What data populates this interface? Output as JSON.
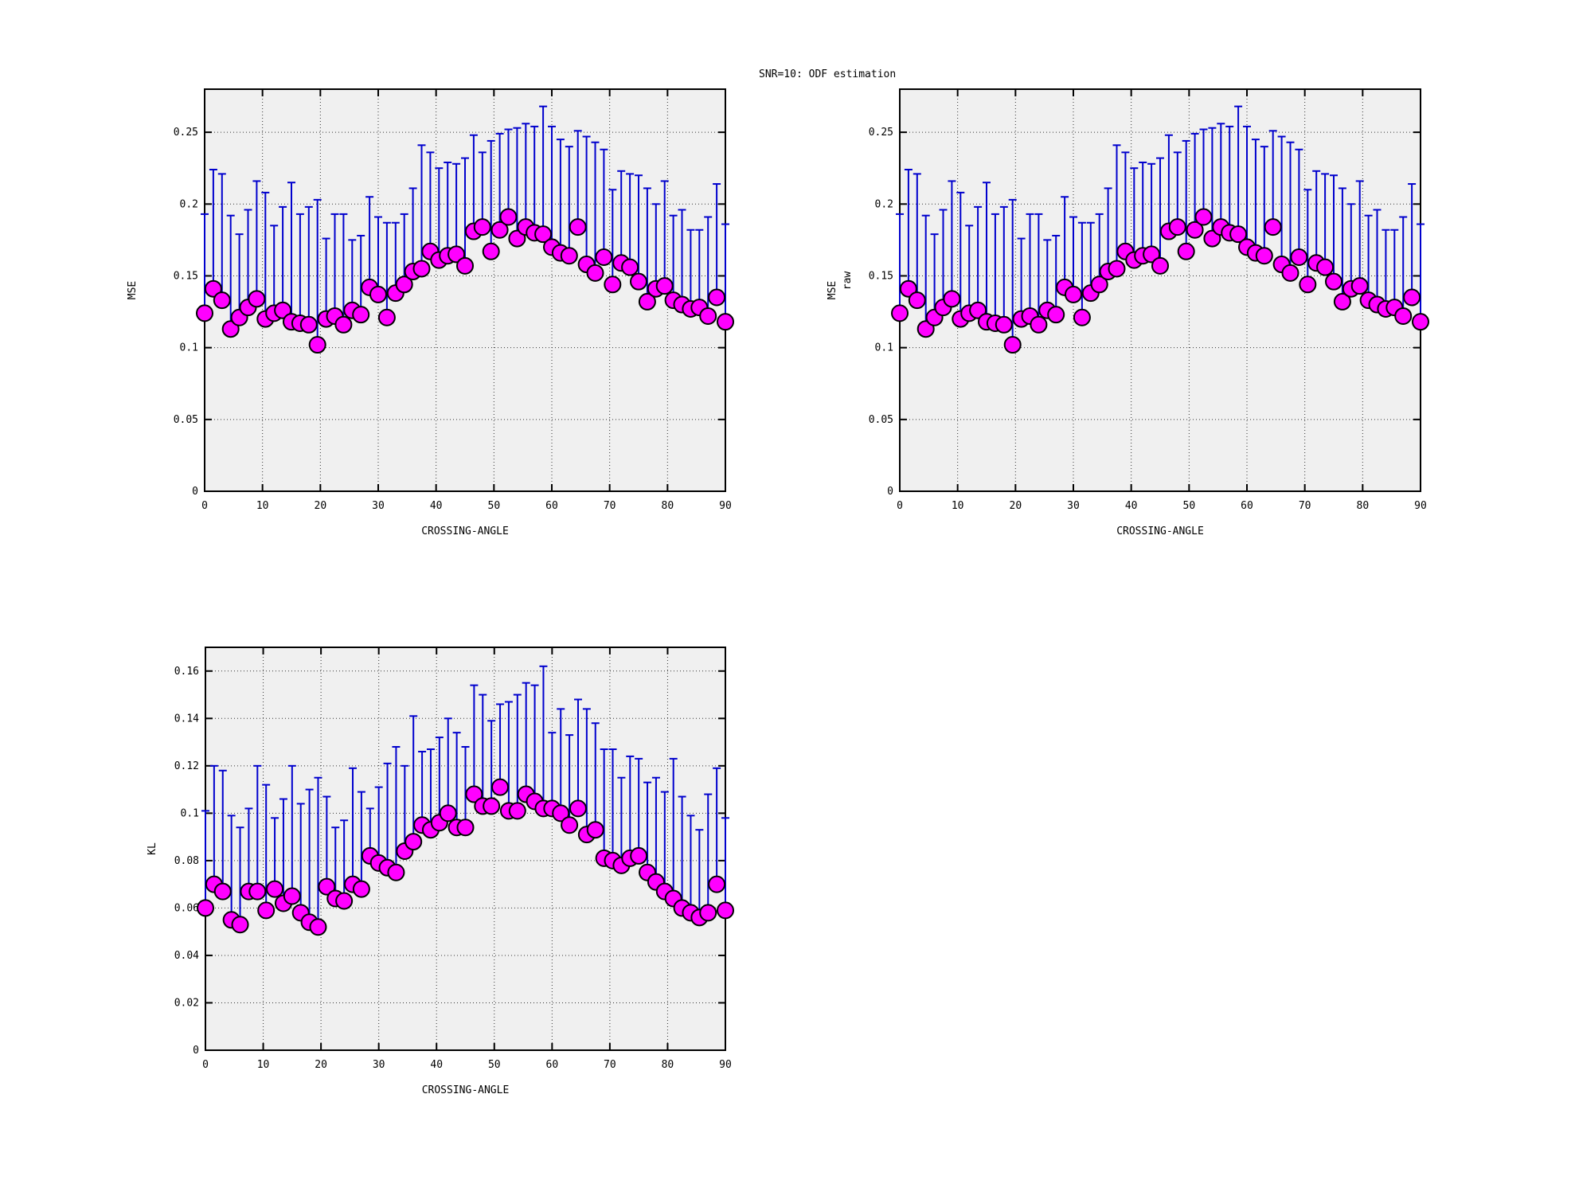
{
  "title": "SNR=10: ODF estimation",
  "colors": {
    "errorbar": "#0000cd",
    "marker_fill": "#ff00ff",
    "marker_stroke": "#000000",
    "plot_bg": "#f0f0f0",
    "page_bg": "#ffffff",
    "grid": "#333333",
    "axis": "#000000",
    "text": "#000000"
  },
  "chart_data": [
    {
      "type": "scatter",
      "name": "mse-odf-estimation",
      "title": "",
      "ylabel": "MSE",
      "xlabel": "CROSSING-ANGLE",
      "legend": "none",
      "grid": true,
      "xlim": [
        0,
        90
      ],
      "ylim": [
        0,
        0.28
      ],
      "xticks": [
        0,
        10,
        20,
        30,
        40,
        50,
        60,
        70,
        80,
        90
      ],
      "xtick_labels": [
        "0",
        "10",
        "20",
        "30",
        "40",
        "50",
        "60",
        "70",
        "80",
        "90"
      ],
      "yticks": [
        0,
        0.05,
        0.1,
        0.15,
        0.2,
        0.25
      ],
      "ytick_labels": [
        "0",
        "0.05",
        "0.1",
        "0.15",
        "0.2",
        "0.25"
      ],
      "x": [
        0,
        1.5,
        3,
        4.5,
        6,
        7.5,
        9,
        10.5,
        12,
        13.5,
        15,
        16.5,
        18,
        19.5,
        21,
        22.5,
        24,
        25.5,
        27,
        28.5,
        30,
        31.5,
        33,
        34.5,
        36,
        37.5,
        39,
        40.5,
        42,
        43.5,
        45,
        46.5,
        48,
        49.5,
        51,
        52.5,
        54,
        55.5,
        57,
        58.5,
        60,
        61.5,
        63,
        64.5,
        66,
        67.5,
        69,
        70.5,
        72,
        73.5,
        75,
        76.5,
        78,
        79.5,
        81,
        82.5,
        84,
        85.5,
        87,
        88.5,
        90
      ],
      "y": [
        0.124,
        0.141,
        0.133,
        0.113,
        0.121,
        0.128,
        0.134,
        0.12,
        0.124,
        0.126,
        0.118,
        0.117,
        0.116,
        0.102,
        0.12,
        0.122,
        0.116,
        0.126,
        0.123,
        0.142,
        0.137,
        0.121,
        0.138,
        0.144,
        0.153,
        0.155,
        0.167,
        0.161,
        0.164,
        0.165,
        0.157,
        0.181,
        0.184,
        0.167,
        0.182,
        0.191,
        0.176,
        0.184,
        0.18,
        0.179,
        0.17,
        0.166,
        0.164,
        0.184,
        0.158,
        0.152,
        0.163,
        0.144,
        0.159,
        0.156,
        0.146,
        0.132,
        0.141,
        0.143,
        0.133,
        0.13,
        0.127,
        0.128,
        0.122,
        0.135,
        0.118
      ],
      "yhigh": [
        0.193,
        0.224,
        0.221,
        0.192,
        0.179,
        0.196,
        0.216,
        0.208,
        0.185,
        0.198,
        0.215,
        0.193,
        0.198,
        0.203,
        0.176,
        0.193,
        0.193,
        0.175,
        0.178,
        0.205,
        0.191,
        0.187,
        0.187,
        0.193,
        0.211,
        0.241,
        0.236,
        0.225,
        0.229,
        0.228,
        0.232,
        0.248,
        0.236,
        0.244,
        0.249,
        0.252,
        0.253,
        0.256,
        0.254,
        0.268,
        0.254,
        0.245,
        0.24,
        0.251,
        0.247,
        0.243,
        0.238,
        0.21,
        0.223,
        0.221,
        0.22,
        0.211,
        0.2,
        0.216,
        0.192,
        0.196,
        0.182,
        0.182,
        0.191,
        0.214,
        0.186
      ]
    },
    {
      "type": "scatter",
      "name": "mse-raw",
      "title": "",
      "ylabel": "MSE",
      "ylabel2": "raw",
      "xlabel": "CROSSING-ANGLE",
      "legend": "none",
      "grid": true,
      "xlim": [
        0,
        90
      ],
      "ylim": [
        0,
        0.28
      ],
      "xticks": [
        0,
        10,
        20,
        30,
        40,
        50,
        60,
        70,
        80,
        90
      ],
      "xtick_labels": [
        "0",
        "10",
        "20",
        "30",
        "40",
        "50",
        "60",
        "70",
        "80",
        "90"
      ],
      "yticks": [
        0,
        0.05,
        0.1,
        0.15,
        0.2,
        0.25
      ],
      "ytick_labels": [
        "0",
        "0.05",
        "0.1",
        "0.15",
        "0.2",
        "0.25"
      ],
      "x": [
        0,
        1.5,
        3,
        4.5,
        6,
        7.5,
        9,
        10.5,
        12,
        13.5,
        15,
        16.5,
        18,
        19.5,
        21,
        22.5,
        24,
        25.5,
        27,
        28.5,
        30,
        31.5,
        33,
        34.5,
        36,
        37.5,
        39,
        40.5,
        42,
        43.5,
        45,
        46.5,
        48,
        49.5,
        51,
        52.5,
        54,
        55.5,
        57,
        58.5,
        60,
        61.5,
        63,
        64.5,
        66,
        67.5,
        69,
        70.5,
        72,
        73.5,
        75,
        76.5,
        78,
        79.5,
        81,
        82.5,
        84,
        85.5,
        87,
        88.5,
        90
      ],
      "y": [
        0.124,
        0.141,
        0.133,
        0.113,
        0.121,
        0.128,
        0.134,
        0.12,
        0.124,
        0.126,
        0.118,
        0.117,
        0.116,
        0.102,
        0.12,
        0.122,
        0.116,
        0.126,
        0.123,
        0.142,
        0.137,
        0.121,
        0.138,
        0.144,
        0.153,
        0.155,
        0.167,
        0.161,
        0.164,
        0.165,
        0.157,
        0.181,
        0.184,
        0.167,
        0.182,
        0.191,
        0.176,
        0.184,
        0.18,
        0.179,
        0.17,
        0.166,
        0.164,
        0.184,
        0.158,
        0.152,
        0.163,
        0.144,
        0.159,
        0.156,
        0.146,
        0.132,
        0.141,
        0.143,
        0.133,
        0.13,
        0.127,
        0.128,
        0.122,
        0.135,
        0.118
      ],
      "yhigh": [
        0.193,
        0.224,
        0.221,
        0.192,
        0.179,
        0.196,
        0.216,
        0.208,
        0.185,
        0.198,
        0.215,
        0.193,
        0.198,
        0.203,
        0.176,
        0.193,
        0.193,
        0.175,
        0.178,
        0.205,
        0.191,
        0.187,
        0.187,
        0.193,
        0.211,
        0.241,
        0.236,
        0.225,
        0.229,
        0.228,
        0.232,
        0.248,
        0.236,
        0.244,
        0.249,
        0.252,
        0.253,
        0.256,
        0.254,
        0.268,
        0.254,
        0.245,
        0.24,
        0.251,
        0.247,
        0.243,
        0.238,
        0.21,
        0.223,
        0.221,
        0.22,
        0.211,
        0.2,
        0.216,
        0.192,
        0.196,
        0.182,
        0.182,
        0.191,
        0.214,
        0.186
      ]
    },
    {
      "type": "scatter",
      "name": "kl-odf-estimation",
      "title": "",
      "ylabel": "KL",
      "xlabel": "CROSSING-ANGLE",
      "legend": "none",
      "grid": true,
      "xlim": [
        0,
        90
      ],
      "ylim": [
        0,
        0.17
      ],
      "xticks": [
        0,
        10,
        20,
        30,
        40,
        50,
        60,
        70,
        80,
        90
      ],
      "xtick_labels": [
        "0",
        "10",
        "20",
        "30",
        "40",
        "50",
        "60",
        "70",
        "80",
        "90"
      ],
      "yticks": [
        0,
        0.02,
        0.04,
        0.06,
        0.08,
        0.1,
        0.12,
        0.14,
        0.16
      ],
      "ytick_labels": [
        "0",
        "0.02",
        "0.04",
        "0.06",
        "0.08",
        "0.1",
        "0.12",
        "0.14",
        "0.16"
      ],
      "x": [
        0,
        1.5,
        3,
        4.5,
        6,
        7.5,
        9,
        10.5,
        12,
        13.5,
        15,
        16.5,
        18,
        19.5,
        21,
        22.5,
        24,
        25.5,
        27,
        28.5,
        30,
        31.5,
        33,
        34.5,
        36,
        37.5,
        39,
        40.5,
        42,
        43.5,
        45,
        46.5,
        48,
        49.5,
        51,
        52.5,
        54,
        55.5,
        57,
        58.5,
        60,
        61.5,
        63,
        64.5,
        66,
        67.5,
        69,
        70.5,
        72,
        73.5,
        75,
        76.5,
        78,
        79.5,
        81,
        82.5,
        84,
        85.5,
        87,
        88.5,
        90
      ],
      "y": [
        0.06,
        0.07,
        0.067,
        0.055,
        0.053,
        0.067,
        0.067,
        0.059,
        0.068,
        0.062,
        0.065,
        0.058,
        0.054,
        0.052,
        0.069,
        0.064,
        0.063,
        0.07,
        0.068,
        0.082,
        0.079,
        0.077,
        0.075,
        0.084,
        0.088,
        0.095,
        0.093,
        0.096,
        0.1,
        0.094,
        0.094,
        0.108,
        0.103,
        0.103,
        0.111,
        0.101,
        0.101,
        0.108,
        0.105,
        0.102,
        0.102,
        0.1,
        0.095,
        0.102,
        0.091,
        0.093,
        0.081,
        0.08,
        0.078,
        0.081,
        0.082,
        0.075,
        0.071,
        0.067,
        0.064,
        0.06,
        0.058,
        0.056,
        0.058,
        0.07,
        0.059
      ],
      "yhigh": [
        0.101,
        0.12,
        0.118,
        0.099,
        0.094,
        0.102,
        0.12,
        0.112,
        0.098,
        0.106,
        0.12,
        0.104,
        0.11,
        0.115,
        0.107,
        0.094,
        0.097,
        0.119,
        0.109,
        0.102,
        0.111,
        0.121,
        0.128,
        0.12,
        0.141,
        0.126,
        0.127,
        0.132,
        0.14,
        0.134,
        0.128,
        0.154,
        0.15,
        0.139,
        0.146,
        0.147,
        0.15,
        0.155,
        0.154,
        0.162,
        0.134,
        0.144,
        0.133,
        0.148,
        0.144,
        0.138,
        0.127,
        0.127,
        0.115,
        0.124,
        0.123,
        0.113,
        0.115,
        0.109,
        0.123,
        0.107,
        0.099,
        0.093,
        0.108,
        0.119,
        0.098
      ]
    }
  ]
}
